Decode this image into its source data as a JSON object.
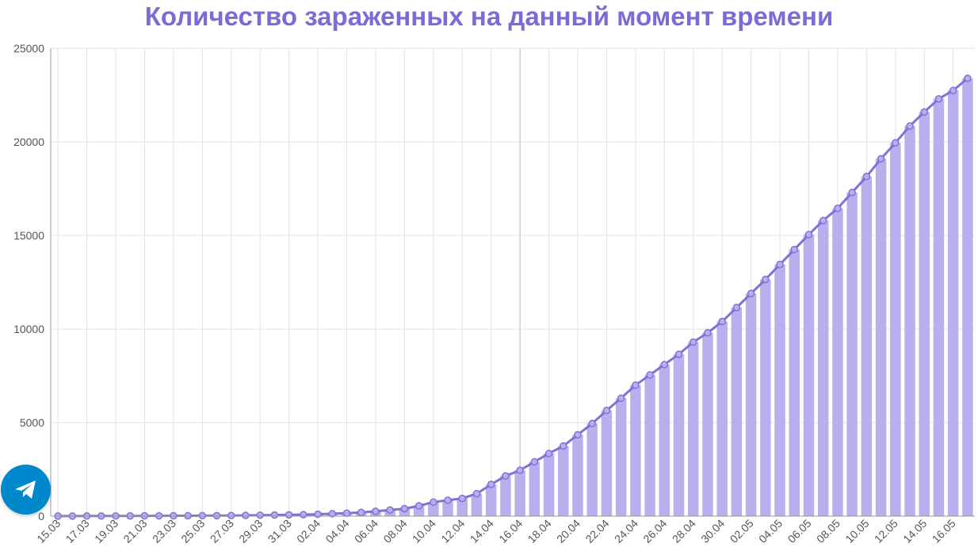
{
  "colors": {
    "title": "#7b6bd6",
    "bar": "#b8b0ec",
    "line": "#8270d8",
    "grid": "#e3e3e3",
    "axis": "#999999",
    "fab": "#0088cc"
  },
  "telegram_button": {
    "icon": "telegram-paper-plane-icon"
  },
  "chart_data": {
    "type": "bar",
    "title": "Количество зараженных на данный момент времени",
    "xlabel": "",
    "ylabel": "",
    "ylim": [
      0,
      25000
    ],
    "yticks": [
      0,
      5000,
      10000,
      15000,
      20000,
      25000
    ],
    "grid": true,
    "legend": "none",
    "overlay_line": true,
    "xtick_labels": [
      "15.03",
      "17.03",
      "19.03",
      "21.03",
      "23.03",
      "25.03",
      "27.03",
      "29.03",
      "31.03",
      "02.04",
      "04.04",
      "06.04",
      "08.04",
      "10.04",
      "12.04",
      "14.04",
      "16.04",
      "18.04",
      "20.04",
      "22.04",
      "24.04",
      "26.04",
      "28.04",
      "30.04",
      "02.05",
      "04.05",
      "06.05",
      "08.05",
      "10.05",
      "12.05",
      "14.05",
      "16.05"
    ],
    "categories": [
      "15.03",
      "16.03",
      "17.03",
      "18.03",
      "19.03",
      "20.03",
      "21.03",
      "22.03",
      "23.03",
      "24.03",
      "25.03",
      "26.03",
      "27.03",
      "28.03",
      "29.03",
      "30.03",
      "31.03",
      "01.04",
      "02.04",
      "03.04",
      "04.04",
      "05.04",
      "06.04",
      "07.04",
      "08.04",
      "09.04",
      "10.04",
      "11.04",
      "12.04",
      "13.04",
      "14.04",
      "15.04",
      "16.04",
      "17.04",
      "18.04",
      "19.04",
      "20.04",
      "21.04",
      "22.04",
      "23.04",
      "24.04",
      "25.04",
      "26.04",
      "27.04",
      "28.04",
      "29.04",
      "30.04",
      "01.05",
      "02.05",
      "03.05",
      "04.05",
      "05.05",
      "06.05",
      "07.05",
      "08.05",
      "09.05",
      "10.05",
      "11.05",
      "12.05",
      "13.05",
      "14.05",
      "15.05",
      "16.05",
      "17.05"
    ],
    "values": [
      5,
      6,
      8,
      9,
      10,
      12,
      15,
      18,
      20,
      22,
      25,
      28,
      30,
      40,
      50,
      60,
      70,
      80,
      100,
      130,
      160,
      200,
      260,
      330,
      400,
      550,
      750,
      850,
      950,
      1200,
      1700,
      2150,
      2450,
      2900,
      3350,
      3750,
      4350,
      4950,
      5650,
      6300,
      7000,
      7550,
      8100,
      8650,
      9300,
      9800,
      10400,
      11150,
      11900,
      12650,
      13450,
      14250,
      15050,
      15800,
      16450,
      17300,
      18150,
      19100,
      19950,
      20850,
      21600,
      22300,
      22750,
      23400
    ]
  }
}
